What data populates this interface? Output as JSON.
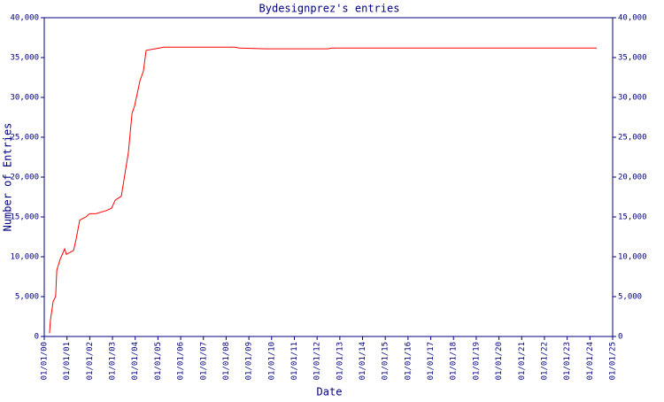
{
  "chart_data": {
    "type": "line",
    "title": "Bydesignprez's entries",
    "x_label": "Date",
    "y_label": "Number of Entries",
    "x": [
      2000.23,
      2000.27,
      2000.39,
      2000.5,
      2000.55,
      2000.7,
      2000.9,
      2000.97,
      2001.29,
      2001.4,
      2001.56,
      2001.83,
      2001.99,
      2002.26,
      2002.73,
      2002.96,
      2003.12,
      2003.39,
      2003.7,
      2003.86,
      2003.97,
      2004.21,
      2004.36,
      2004.48,
      2005.06,
      2005.26,
      2008.37,
      2008.57,
      2009.74,
      2012.46,
      2012.66,
      2024.3
    ],
    "values": [
      400,
      2000,
      4400,
      5000,
      8300,
      9700,
      11000,
      10300,
      10800,
      12200,
      14600,
      15000,
      15400,
      15400,
      15800,
      16100,
      17100,
      17600,
      23100,
      28000,
      28900,
      32100,
      33300,
      35900,
      36200,
      36300,
      36300,
      36200,
      36100,
      36100,
      36200,
      36200
    ],
    "color": "#ff0000",
    "xlim": [
      2000,
      2025
    ],
    "xticks": [
      {
        "value": 2000,
        "label": "01/01/00"
      },
      {
        "value": 2001,
        "label": "01/01/01"
      },
      {
        "value": 2002,
        "label": "01/01/02"
      },
      {
        "value": 2003,
        "label": "01/01/03"
      },
      {
        "value": 2004,
        "label": "01/01/04"
      },
      {
        "value": 2005,
        "label": "01/01/05"
      },
      {
        "value": 2006,
        "label": "01/01/06"
      },
      {
        "value": 2007,
        "label": "01/01/07"
      },
      {
        "value": 2008,
        "label": "01/01/08"
      },
      {
        "value": 2009,
        "label": "01/01/09"
      },
      {
        "value": 2010,
        "label": "01/01/10"
      },
      {
        "value": 2011,
        "label": "01/01/11"
      },
      {
        "value": 2012,
        "label": "01/01/12"
      },
      {
        "value": 2013,
        "label": "01/01/13"
      },
      {
        "value": 2014,
        "label": "01/01/14"
      },
      {
        "value": 2015,
        "label": "01/01/15"
      },
      {
        "value": 2016,
        "label": "01/01/16"
      },
      {
        "value": 2017,
        "label": "01/01/17"
      },
      {
        "value": 2018,
        "label": "01/01/18"
      },
      {
        "value": 2019,
        "label": "01/01/19"
      },
      {
        "value": 2020,
        "label": "01/01/20"
      },
      {
        "value": 2021,
        "label": "01/01/21"
      },
      {
        "value": 2022,
        "label": "01/01/22"
      },
      {
        "value": 2023,
        "label": "01/01/23"
      },
      {
        "value": 2024,
        "label": "01/01/24"
      },
      {
        "value": 2025,
        "label": "01/01/25"
      }
    ],
    "ylim": [
      0,
      40000
    ],
    "yticks": [
      0,
      {
        "value": 5000,
        "label": "5,000"
      },
      {
        "value": 10000,
        "label": "10,000"
      },
      {
        "value": 15000,
        "label": "15,000"
      },
      {
        "value": 20000,
        "label": "20,000"
      },
      {
        "value": 25000,
        "label": "25,000"
      },
      {
        "value": 30000,
        "label": "30,000"
      },
      {
        "value": 35000,
        "label": "35,000"
      },
      {
        "value": 40000,
        "label": "40,000"
      }
    ],
    "right_axis": true
  }
}
